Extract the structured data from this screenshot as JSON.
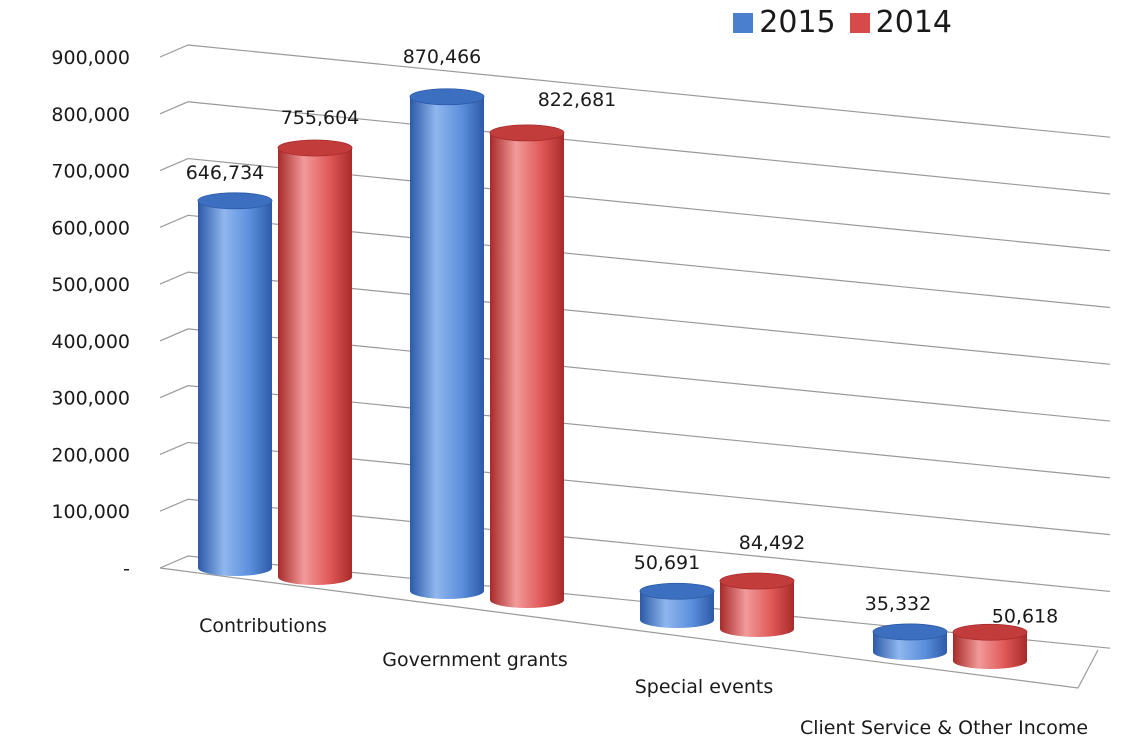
{
  "legend": {
    "position": "top-right",
    "items": [
      {
        "label": "2015",
        "color": "#4a7fd0"
      },
      {
        "label": "2014",
        "color": "#d64a4a"
      }
    ]
  },
  "chart_data": {
    "type": "bar",
    "style": "3d-cylinder",
    "categories": [
      "Contributions",
      "Government grants",
      "Special events",
      "Client Service & Other Income"
    ],
    "series": [
      {
        "name": "2015",
        "values": [
          646734,
          870466,
          50691,
          35332
        ]
      },
      {
        "name": "2014",
        "values": [
          755604,
          822681,
          84492,
          50618
        ]
      }
    ],
    "data_labels": [
      [
        "646,734",
        "870,466",
        "50,691",
        "35,332"
      ],
      [
        "755,604",
        "822,681",
        "84,492",
        "50,618"
      ]
    ],
    "ylim": [
      0,
      900000
    ],
    "yticks": [
      0,
      100000,
      200000,
      300000,
      400000,
      500000,
      600000,
      700000,
      800000,
      900000
    ],
    "ytick_labels": [
      "-",
      "100,000",
      "200,000",
      "300,000",
      "400,000",
      "500,000",
      "600,000",
      "700,000",
      "800,000",
      "900,000"
    ],
    "grid": true,
    "title": "",
    "xlabel": "",
    "ylabel": ""
  }
}
